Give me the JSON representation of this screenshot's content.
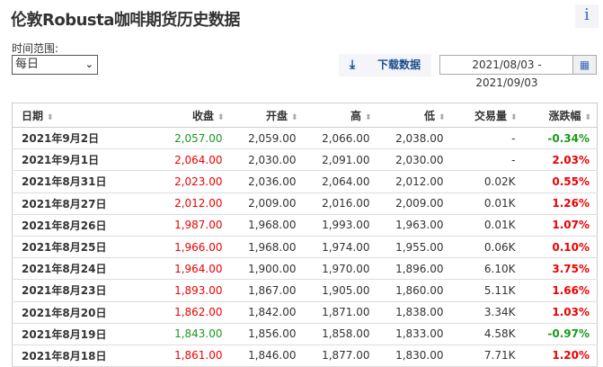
{
  "header": {
    "title": "伦敦Robusta咖啡期货历史数据",
    "info_icon": "info-icon"
  },
  "controls": {
    "range_label": "时间范围:",
    "interval_value": "每日",
    "download_label": "下载数据",
    "date_range_start": "2021/08/03 -",
    "date_range_end": "2021/09/03"
  },
  "colors": {
    "up": "#e00000",
    "down": "#1a9a1a"
  },
  "table": {
    "columns": [
      "日期",
      "收盘",
      "开盘",
      "高",
      "低",
      "交易量",
      "涨跌幅"
    ],
    "rows": [
      {
        "date": "2021年9月2日",
        "close": "2,057.00",
        "open": "2,059.00",
        "high": "2,066.00",
        "low": "2,038.00",
        "volume": "-",
        "change": "-0.34%",
        "dir": "down"
      },
      {
        "date": "2021年9月1日",
        "close": "2,064.00",
        "open": "2,030.00",
        "high": "2,091.00",
        "low": "2,030.00",
        "volume": "-",
        "change": "2.03%",
        "dir": "up"
      },
      {
        "date": "2021年8月31日",
        "close": "2,023.00",
        "open": "2,036.00",
        "high": "2,064.00",
        "low": "2,012.00",
        "volume": "0.02K",
        "change": "0.55%",
        "dir": "up"
      },
      {
        "date": "2021年8月27日",
        "close": "2,012.00",
        "open": "2,009.00",
        "high": "2,016.00",
        "low": "2,009.00",
        "volume": "0.01K",
        "change": "1.26%",
        "dir": "up"
      },
      {
        "date": "2021年8月26日",
        "close": "1,987.00",
        "open": "1,968.00",
        "high": "1,993.00",
        "low": "1,963.00",
        "volume": "0.01K",
        "change": "1.07%",
        "dir": "up"
      },
      {
        "date": "2021年8月25日",
        "close": "1,966.00",
        "open": "1,968.00",
        "high": "1,974.00",
        "low": "1,955.00",
        "volume": "0.06K",
        "change": "0.10%",
        "dir": "up"
      },
      {
        "date": "2021年8月24日",
        "close": "1,964.00",
        "open": "1,900.00",
        "high": "1,970.00",
        "low": "1,896.00",
        "volume": "6.10K",
        "change": "3.75%",
        "dir": "up"
      },
      {
        "date": "2021年8月23日",
        "close": "1,893.00",
        "open": "1,867.00",
        "high": "1,905.00",
        "low": "1,860.00",
        "volume": "5.11K",
        "change": "1.66%",
        "dir": "up"
      },
      {
        "date": "2021年8月20日",
        "close": "1,862.00",
        "open": "1,842.00",
        "high": "1,871.00",
        "low": "1,838.00",
        "volume": "3.34K",
        "change": "1.03%",
        "dir": "up"
      },
      {
        "date": "2021年8月19日",
        "close": "1,843.00",
        "open": "1,856.00",
        "high": "1,858.00",
        "low": "1,833.00",
        "volume": "4.58K",
        "change": "-0.97%",
        "dir": "down"
      },
      {
        "date": "2021年8月18日",
        "close": "1,861.00",
        "open": "1,846.00",
        "high": "1,877.00",
        "low": "1,830.00",
        "volume": "7.71K",
        "change": "1.20%",
        "dir": "up"
      }
    ]
  }
}
